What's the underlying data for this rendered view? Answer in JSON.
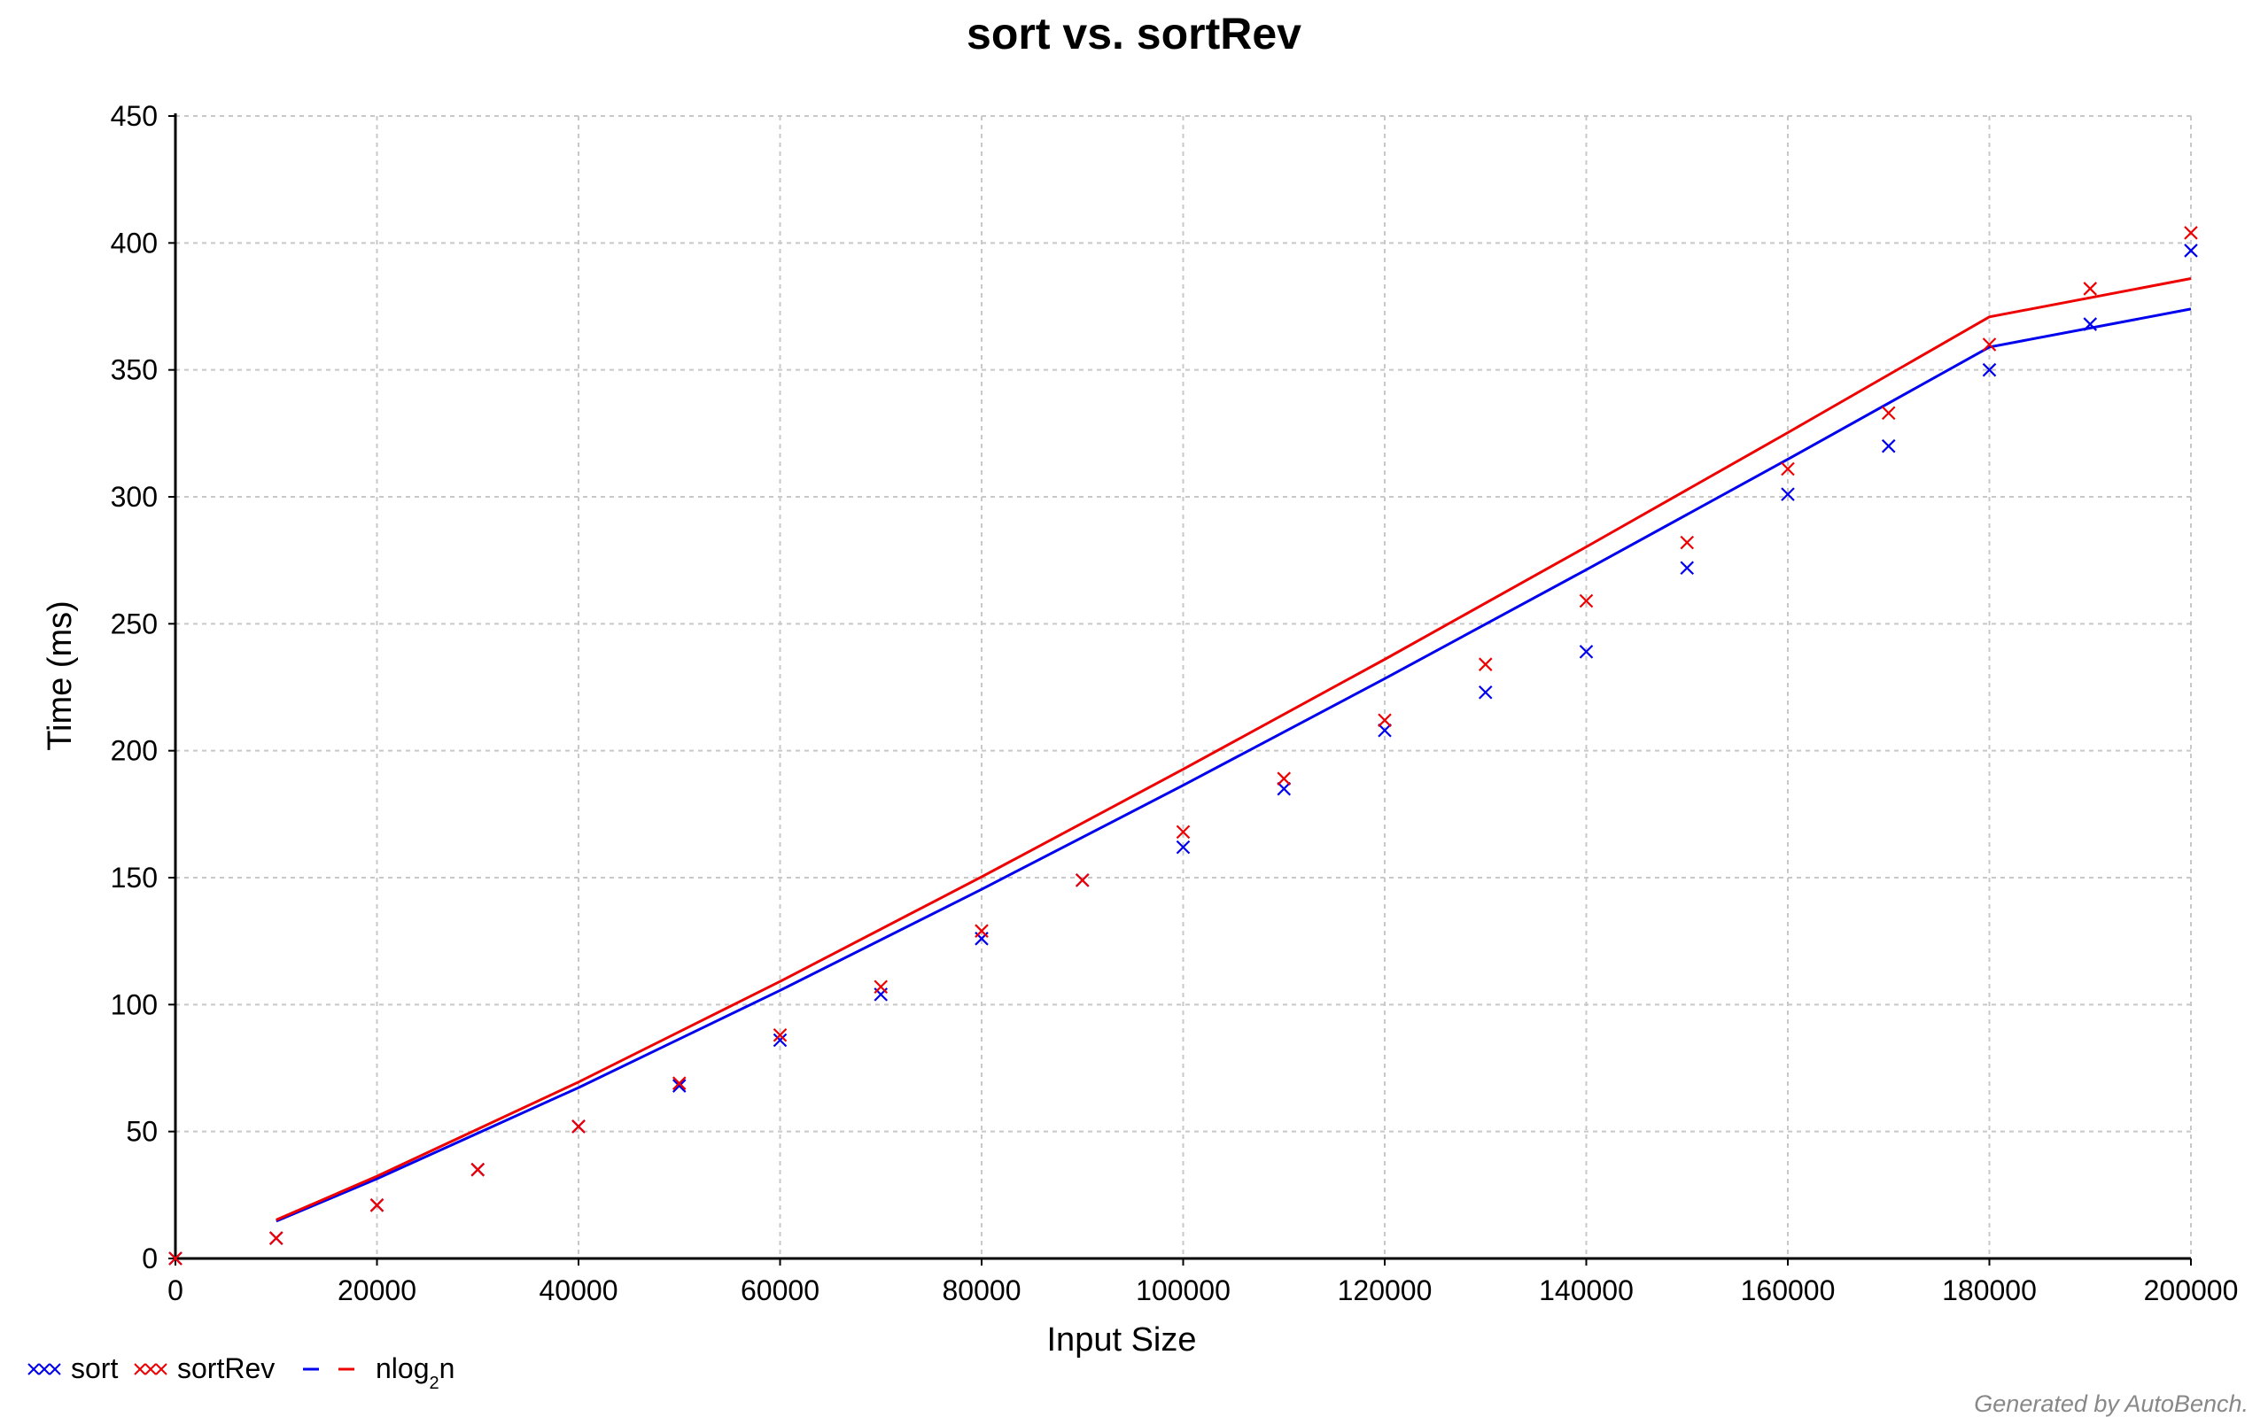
{
  "chart_data": {
    "type": "scatter",
    "title": "sort vs. sortRev",
    "xlabel": "Input Size",
    "ylabel": "Time (ms)",
    "xlim": [
      0,
      200000
    ],
    "ylim": [
      0,
      450
    ],
    "x_ticks": [
      "0",
      "20000",
      "40000",
      "60000",
      "80000",
      "100000",
      "120000",
      "140000",
      "160000",
      "180000",
      "200000"
    ],
    "y_ticks": [
      "0",
      "50",
      "100",
      "150",
      "200",
      "250",
      "300",
      "350",
      "400",
      "450"
    ],
    "grid": true,
    "legend_position": "bottom-left",
    "x": [
      0,
      10000,
      20000,
      30000,
      40000,
      50000,
      60000,
      70000,
      80000,
      90000,
      100000,
      110000,
      120000,
      130000,
      140000,
      150000,
      160000,
      170000,
      180000,
      190000,
      200000
    ],
    "series": [
      {
        "name": "sort",
        "marker": "x",
        "color": "#0000ee",
        "values": [
          0,
          8,
          21,
          35,
          52,
          68,
          86,
          104,
          126,
          149,
          162,
          185,
          208,
          223,
          239,
          272,
          301,
          320,
          350,
          368,
          397
        ]
      },
      {
        "name": "sortRev",
        "marker": "x",
        "color": "#ee0000",
        "values": [
          0,
          8,
          21,
          35,
          52,
          69,
          88,
          107,
          129,
          149,
          168,
          189,
          212,
          234,
          259,
          282,
          311,
          333,
          360,
          382,
          404
        ]
      }
    ],
    "fits": [
      {
        "name": "nlog2n",
        "fit_of": "sort",
        "color": "#0000ee",
        "x": [
          10000,
          20000,
          40000,
          60000,
          80000,
          100000,
          120000,
          140000,
          160000,
          180000,
          200000
        ],
        "values": [
          14.7,
          31.4,
          67.3,
          105.6,
          145.4,
          186.4,
          228.4,
          271.3,
          314.8,
          359.0,
          374.0
        ]
      },
      {
        "name": "nlog2n",
        "fit_of": "sortRev",
        "color": "#ee0000",
        "x": [
          10000,
          20000,
          40000,
          60000,
          80000,
          100000,
          120000,
          140000,
          160000,
          180000,
          200000
        ],
        "values": [
          15.2,
          32.4,
          69.5,
          109.1,
          150.3,
          192.7,
          236.0,
          280.3,
          325.3,
          370.9,
          386.0
        ]
      }
    ]
  },
  "legend": {
    "items": [
      {
        "label": "sort",
        "kind": "marker",
        "color": "#0000ee"
      },
      {
        "label": "sortRev",
        "kind": "marker",
        "color": "#ee0000"
      }
    ],
    "fit_label_main": "nlog",
    "fit_label_sub": "2",
    "fit_label_end": "n",
    "fit_colors": [
      "#0000ee",
      "#ee0000"
    ]
  },
  "footer": {
    "credit": "Generated by AutoBench."
  }
}
